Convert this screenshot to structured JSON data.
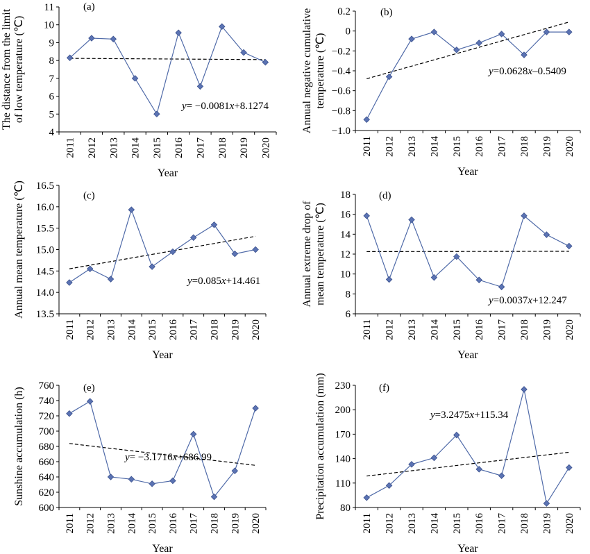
{
  "chart_data": [
    {
      "id": "a",
      "panel_label": "(a)",
      "type": "line",
      "categories": [
        "2011",
        "2012",
        "2013",
        "2014",
        "2015",
        "2016",
        "2017",
        "2018",
        "2019",
        "2020"
      ],
      "values": [
        8.15,
        9.25,
        9.2,
        7.0,
        5.0,
        9.55,
        6.55,
        9.9,
        8.45,
        7.9
      ],
      "ylim": [
        4,
        11
      ],
      "yticks": [
        "4",
        "5",
        "6",
        "7",
        "8",
        "9",
        "10",
        "11"
      ],
      "xlabel": "Year",
      "ylabel_lines": [
        "The distance from the limit",
        "of low temperature (℃)"
      ],
      "trend": {
        "start": 8.12,
        "end": 8.05
      },
      "equation": {
        "y": "y",
        "rest": "= −0.0081",
        "x": "x",
        "tail": "+8.1274"
      }
    },
    {
      "id": "b",
      "panel_label": "(b)",
      "type": "line",
      "categories": [
        "2011",
        "2012",
        "2013",
        "2014",
        "2015",
        "2016",
        "2017",
        "2018",
        "2019",
        "2020"
      ],
      "values": [
        -0.89,
        -0.46,
        -0.08,
        -0.01,
        -0.19,
        -0.12,
        -0.03,
        -0.24,
        -0.01,
        -0.01
      ],
      "ylim": [
        -1.0,
        0.2
      ],
      "yticks": [
        "−1.0",
        "−0.8",
        "−0.6",
        "−0.4",
        "−0.2",
        "0",
        "0.2"
      ],
      "xlabel": "Year",
      "ylabel_lines": [
        "Annual negative cumulative",
        "temperature (℃)"
      ],
      "trend": {
        "start": -0.48,
        "end": 0.09
      },
      "equation": {
        "y": "y",
        "rest": "=0.0628",
        "x": "x",
        "tail": "–0.5409"
      }
    },
    {
      "id": "c",
      "panel_label": "(c)",
      "type": "line",
      "categories": [
        "2011",
        "2012",
        "2013",
        "2014",
        "2015",
        "2016",
        "2017",
        "2018",
        "2019",
        "2020"
      ],
      "values": [
        14.23,
        14.55,
        14.31,
        15.93,
        14.6,
        14.95,
        15.28,
        15.58,
        14.9,
        15.0
      ],
      "ylim": [
        13.5,
        16.5
      ],
      "yticks": [
        "13.5",
        "14.0",
        "14.5",
        "15.0",
        "15.5",
        "16.0",
        "16.5"
      ],
      "xlabel": "Year",
      "ylabel_lines": [
        "Annual mean temperature (℃)"
      ],
      "trend": {
        "start": 14.55,
        "end": 15.31
      },
      "equation": {
        "y": "y",
        "rest": "=0.085",
        "x": "x",
        "tail": "+14.461"
      }
    },
    {
      "id": "d",
      "panel_label": "(d)",
      "type": "line",
      "categories": [
        "2011",
        "2012",
        "2013",
        "2014",
        "2015",
        "2016",
        "2017",
        "2018",
        "2019",
        "2020"
      ],
      "values": [
        15.85,
        9.45,
        15.45,
        9.65,
        11.75,
        9.4,
        8.7,
        15.85,
        13.95,
        12.8
      ],
      "ylim": [
        6,
        18
      ],
      "yticks": [
        "6",
        "8",
        "10",
        "12",
        "14",
        "16",
        "18"
      ],
      "xlabel": "Year",
      "ylabel_lines": [
        "Annual extreme drop of",
        "mean temperature (℃)"
      ],
      "trend": {
        "start": 12.25,
        "end": 12.28
      },
      "equation": {
        "y": "y",
        "rest": "=0.0037",
        "x": "x",
        "tail": "+12.247"
      }
    },
    {
      "id": "e",
      "panel_label": "(e)",
      "type": "line",
      "categories": [
        "2011",
        "2012",
        "2013",
        "2014",
        "2015",
        "2016",
        "2017",
        "2018",
        "2019",
        "2020"
      ],
      "values": [
        723,
        739,
        640,
        637,
        631,
        635,
        696,
        614,
        648,
        730
      ],
      "ylim": [
        600,
        760
      ],
      "yticks": [
        "600",
        "620",
        "640",
        "660",
        "680",
        "700",
        "720",
        "740",
        "760"
      ],
      "xlabel": "Year",
      "ylabel_lines": [
        "Sunshine accumulation (h)"
      ],
      "trend": {
        "start": 683.8,
        "end": 655.2
      },
      "equation": {
        "y": "y",
        "rest": "= −3.1716",
        "x": "x",
        "tail": "+686.99"
      }
    },
    {
      "id": "f",
      "panel_label": "(f)",
      "type": "line",
      "categories": [
        "2011",
        "2012",
        "2013",
        "2014",
        "2015",
        "2016",
        "2017",
        "2018",
        "2019",
        "2020"
      ],
      "values": [
        92,
        107,
        133,
        141,
        169,
        127,
        119,
        225,
        85,
        129
      ],
      "ylim": [
        80,
        230
      ],
      "yticks": [
        "80",
        "110",
        "140",
        "170",
        "200",
        "230"
      ],
      "xlabel": "Year",
      "ylabel_lines": [
        "Precipitation accumulation (mm)"
      ],
      "trend": {
        "start": 118.6,
        "end": 147.8
      },
      "equation": {
        "y": "y",
        "rest": "=3.2475",
        "x": "x",
        "tail": "+115.34"
      }
    }
  ],
  "colors": {
    "series": "#4f6aa8",
    "marker": "#5b73b3",
    "trend": "#000000"
  }
}
